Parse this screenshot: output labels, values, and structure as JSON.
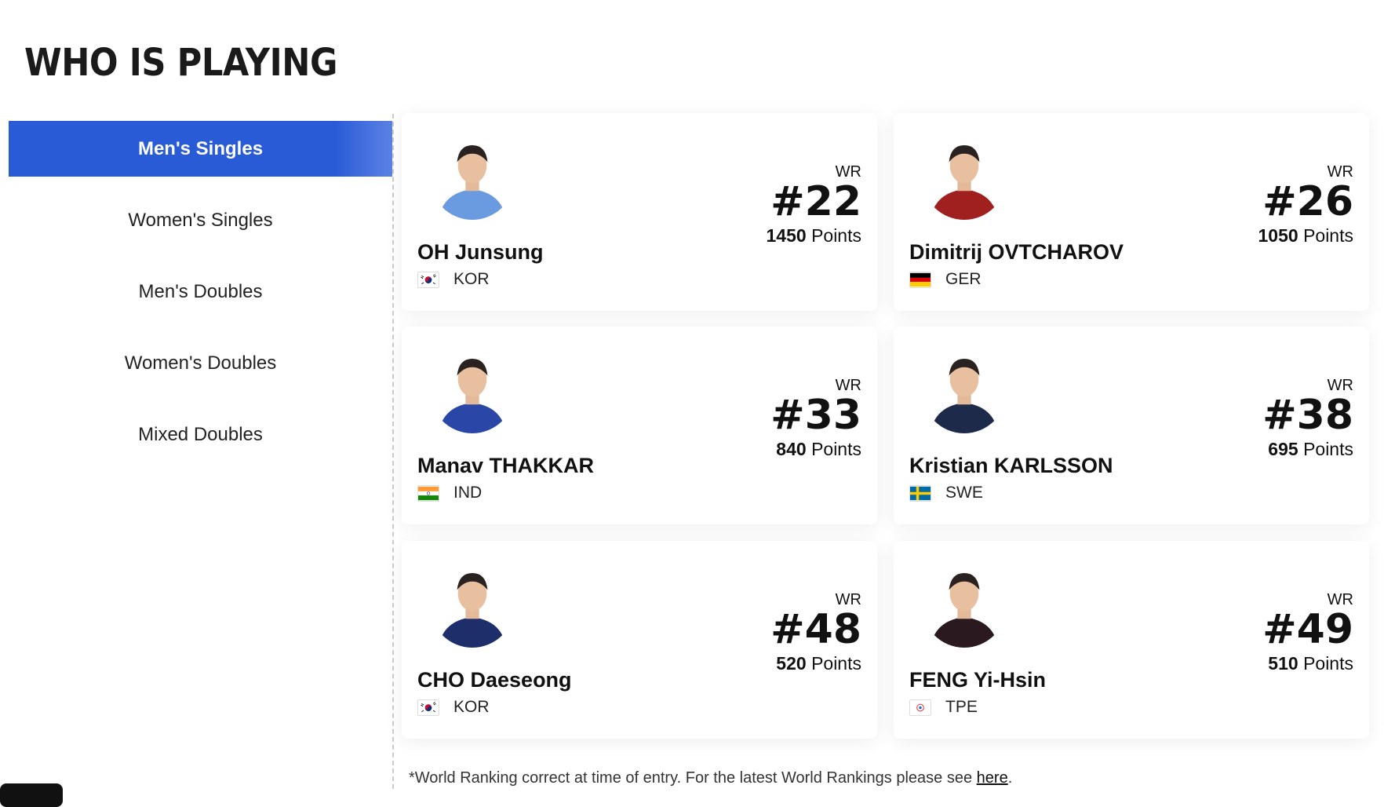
{
  "header": {
    "title": "WHO IS PLAYING"
  },
  "tabs": [
    {
      "label": "Men's Singles",
      "active": true
    },
    {
      "label": "Women's Singles"
    },
    {
      "label": "Men's Doubles"
    },
    {
      "label": "Women's Doubles"
    },
    {
      "label": "Mixed Doubles"
    }
  ],
  "players": [
    {
      "name": "OH Junsung",
      "country": "KOR",
      "wr_label": "WR",
      "rank": "#22",
      "points": "1450",
      "points_label": "Points",
      "shirt": "#6a9be0"
    },
    {
      "name": "Dimitrij OVTCHAROV",
      "country": "GER",
      "wr_label": "WR",
      "rank": "#26",
      "points": "1050",
      "points_label": "Points",
      "shirt": "#a02020"
    },
    {
      "name": "Manav THAKKAR",
      "country": "IND",
      "wr_label": "WR",
      "rank": "#33",
      "points": "840",
      "points_label": "Points",
      "shirt": "#2a47a8"
    },
    {
      "name": "Kristian KARLSSON",
      "country": "SWE",
      "wr_label": "WR",
      "rank": "#38",
      "points": "695",
      "points_label": "Points",
      "shirt": "#1e2a4a"
    },
    {
      "name": "CHO Daeseong",
      "country": "KOR",
      "wr_label": "WR",
      "rank": "#48",
      "points": "520",
      "points_label": "Points",
      "shirt": "#1d2e6a"
    },
    {
      "name": "FENG Yi-Hsin",
      "country": "TPE",
      "wr_label": "WR",
      "rank": "#49",
      "points": "510",
      "points_label": "Points",
      "shirt": "#2a1a20"
    }
  ],
  "footer": {
    "text": "*World Ranking correct at time of entry. For the latest World Rankings please see ",
    "link": "here",
    "end": "."
  },
  "colors": {
    "accent": "#2a5bd7"
  }
}
